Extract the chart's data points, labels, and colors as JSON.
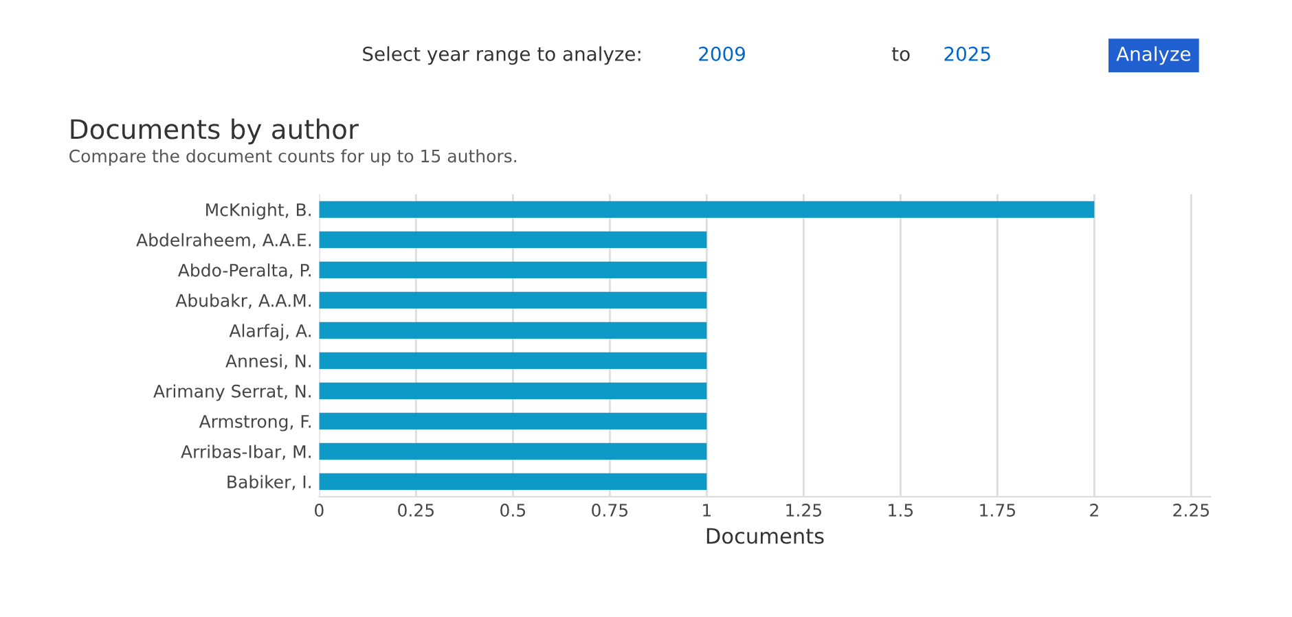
{
  "chart_data": {
    "type": "bar",
    "orientation": "horizontal",
    "title": "Documents by author",
    "subtitle": "Compare the document counts for up to 15 authors.",
    "xlabel": "Documents",
    "categories": [
      "McKnight, B.",
      "Abdelraheem, A.A.E.",
      "Abdo-Peralta, P.",
      "Abubakr, A.A.M.",
      "Alarfaj, A.",
      "Annesi, N.",
      "Arimany Serrat, N.",
      "Armstrong, F.",
      "Arribas-Ibar, M.",
      "Babiker, I."
    ],
    "values": [
      2,
      1,
      1,
      1,
      1,
      1,
      1,
      1,
      1,
      1
    ],
    "color": "#0e9ac6",
    "xlim": [
      0,
      2.3
    ],
    "xticks": [
      0,
      0.25,
      0.5,
      0.75,
      1,
      1.25,
      1.5,
      1.75,
      2,
      2.25
    ],
    "grid": "x",
    "annotations": [
      "Select year range to analyze:",
      "2009",
      "to",
      "2025",
      "Analyze"
    ]
  }
}
